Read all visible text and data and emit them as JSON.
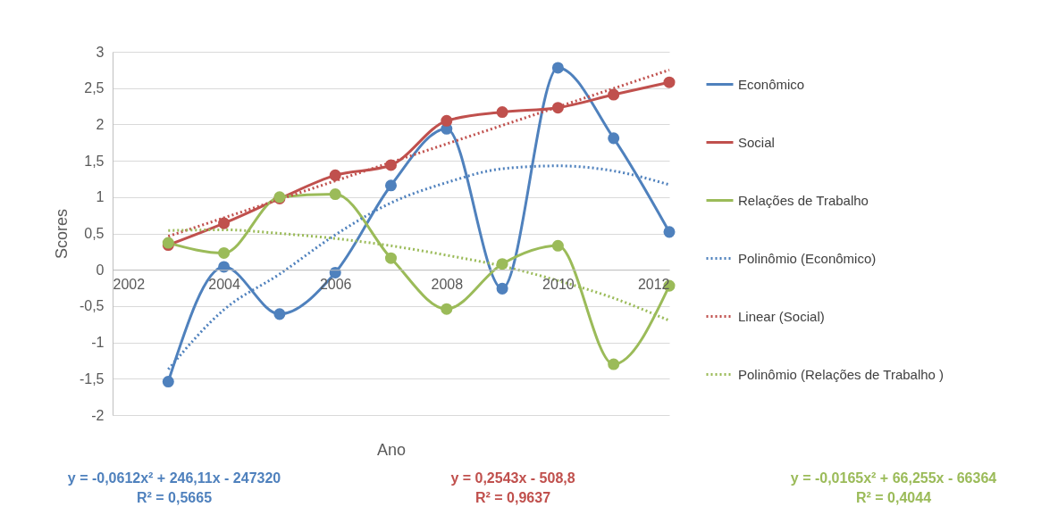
{
  "chart_data": {
    "type": "line",
    "xlabel": "Ano",
    "ylabel": "Scores",
    "x": [
      2003,
      2004,
      2005,
      2006,
      2007,
      2008,
      2009,
      2010,
      2011,
      2012
    ],
    "xlim": [
      2002,
      2012
    ],
    "xticks": [
      2002,
      2004,
      2006,
      2008,
      2010,
      2012
    ],
    "ylim": [
      -2,
      3
    ],
    "yticks": [
      {
        "value": -2,
        "label": "-2"
      },
      {
        "value": -1.5,
        "label": "-1,5"
      },
      {
        "value": -1,
        "label": "-1"
      },
      {
        "value": -0.5,
        "label": "-0,5"
      },
      {
        "value": 0,
        "label": "0"
      },
      {
        "value": 0.5,
        "label": "0,5"
      },
      {
        "value": 1,
        "label": "1"
      },
      {
        "value": 1.5,
        "label": "1,5"
      },
      {
        "value": 2,
        "label": "2"
      },
      {
        "value": 2.5,
        "label": "2,5"
      },
      {
        "value": 3,
        "label": "3"
      }
    ],
    "grid": "y",
    "legend": "right",
    "marker": "circle",
    "line_style": "solid",
    "series": [
      {
        "name": "Econômico",
        "color": "#4f81bd",
        "values": [
          -1.54,
          0.04,
          -0.61,
          -0.04,
          1.16,
          1.94,
          -0.26,
          2.78,
          1.81,
          0.52
        ]
      },
      {
        "name": "Social",
        "color": "#c0504d",
        "values": [
          0.34,
          0.64,
          0.98,
          1.3,
          1.44,
          2.05,
          2.17,
          2.23,
          2.41,
          2.58
        ]
      },
      {
        "name": "Relações de Trabalho",
        "color": "#9bbb59",
        "values": [
          0.37,
          0.23,
          1.0,
          1.04,
          0.16,
          -0.54,
          0.08,
          0.33,
          -1.3,
          -0.22
        ]
      },
      {
        "name": "Polinômio (Econômico)",
        "color": "#4f81bd",
        "marker": "none",
        "line_style": "dotted",
        "values": [
          -1.37,
          -0.55,
          -0.06,
          0.48,
          0.92,
          1.2,
          1.39,
          1.43,
          1.36,
          1.17
        ]
      },
      {
        "name": "Linear (Social)",
        "color": "#c0504d",
        "marker": "none",
        "line_style": "dotted",
        "x": [
          2003,
          2012
        ],
        "values": [
          0.46,
          2.75
        ]
      },
      {
        "name": "Polinômio (Relações de Trabalho )",
        "color": "#9bbb59",
        "marker": "none",
        "line_style": "dotted",
        "values": [
          0.54,
          0.55,
          0.5,
          0.43,
          0.33,
          0.2,
          0.05,
          -0.15,
          -0.39,
          -0.7
        ]
      }
    ],
    "annotations": [
      "y = -0,0612x² + 246,11x - 247320\nR² = 0,5665",
      "y = 0,2543x - 508,8\nR² = 0,9637",
      "y = -0,0165x² + 66,255x - 66364\nR² = 0,4044"
    ]
  }
}
